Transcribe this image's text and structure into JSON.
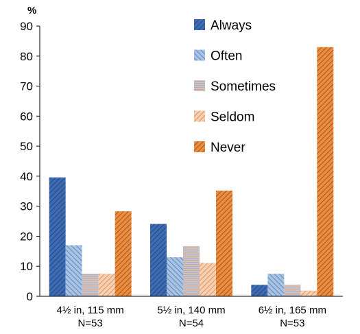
{
  "chart_data": {
    "type": "bar",
    "ylabel": "%",
    "ylim": [
      0,
      90
    ],
    "yticks": [
      0,
      10,
      20,
      30,
      40,
      50,
      60,
      70,
      80,
      90
    ],
    "grid": false,
    "legend_position": "top-right",
    "categories": [
      {
        "line1": "4½ in, 115 mm",
        "line2": "N=53"
      },
      {
        "line1": "5½ in, 140 mm",
        "line2": "N=54"
      },
      {
        "line1": "6½ in, 165 mm",
        "line2": "N=53"
      }
    ],
    "series": [
      {
        "name": "Always",
        "color": "#3d6cb4",
        "pattern": "hatch-dark-blue",
        "values": [
          39.6,
          24.1,
          3.8
        ]
      },
      {
        "name": "Often",
        "color": "#8fb0d8",
        "pattern": "hatch-light-blue",
        "values": [
          17.0,
          13.0,
          7.5
        ]
      },
      {
        "name": "Sometimes",
        "color": "#f4b183",
        "pattern": "stripes-horizontal",
        "values": [
          7.5,
          16.7,
          3.8
        ]
      },
      {
        "name": "Seldom",
        "color": "#f4b183",
        "pattern": "hatch-light-orange",
        "values": [
          7.5,
          11.1,
          1.9
        ]
      },
      {
        "name": "Never",
        "color": "#ed8c3f",
        "pattern": "hatch-dark-orange",
        "values": [
          28.3,
          35.2,
          83.0
        ]
      }
    ]
  }
}
